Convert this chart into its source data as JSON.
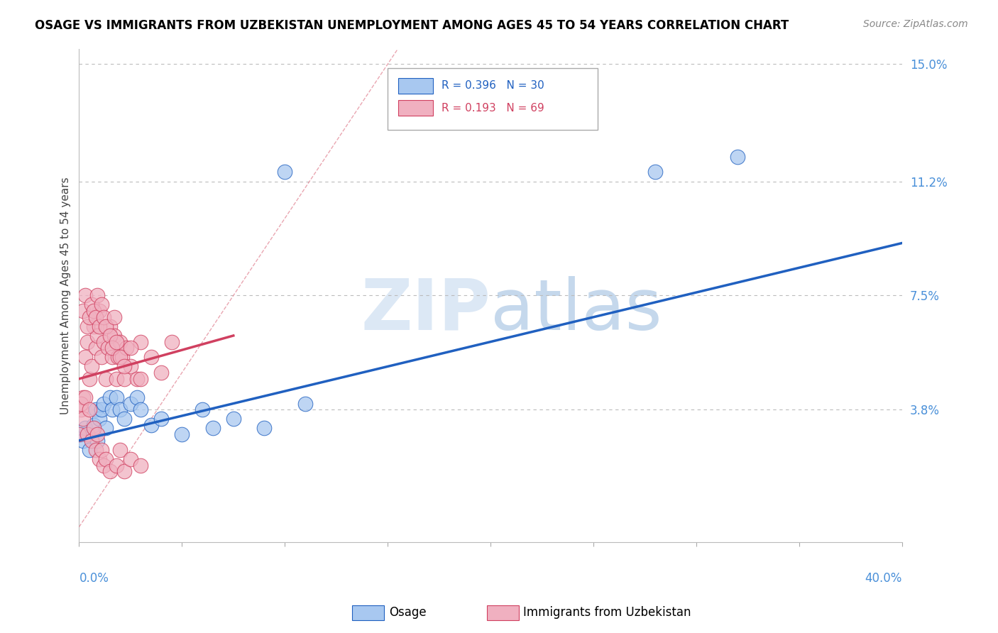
{
  "title": "OSAGE VS IMMIGRANTS FROM UZBEKISTAN UNEMPLOYMENT AMONG AGES 45 TO 54 YEARS CORRELATION CHART",
  "source": "Source: ZipAtlas.com",
  "ylabel": "Unemployment Among Ages 45 to 54 years",
  "xrange": [
    0.0,
    0.4
  ],
  "yrange": [
    -0.005,
    0.155
  ],
  "color_blue": "#a8c8f0",
  "color_pink": "#f0b0c0",
  "trend_blue": "#2060c0",
  "trend_pink": "#d04060",
  "ref_line_color": "#ddaaaa",
  "watermark_zip": "#c8d8e8",
  "watermark_atlas": "#b0c8e0",
  "osage_x": [
    0.001,
    0.002,
    0.003,
    0.005,
    0.007,
    0.008,
    0.009,
    0.01,
    0.011,
    0.012,
    0.013,
    0.015,
    0.016,
    0.018,
    0.02,
    0.022,
    0.025,
    0.028,
    0.03,
    0.035,
    0.04,
    0.05,
    0.06,
    0.065,
    0.075,
    0.09,
    0.1,
    0.11,
    0.28,
    0.32
  ],
  "osage_y": [
    0.03,
    0.028,
    0.032,
    0.025,
    0.033,
    0.038,
    0.028,
    0.035,
    0.038,
    0.04,
    0.032,
    0.042,
    0.038,
    0.042,
    0.038,
    0.035,
    0.04,
    0.042,
    0.038,
    0.033,
    0.035,
    0.03,
    0.038,
    0.032,
    0.035,
    0.032,
    0.115,
    0.04,
    0.115,
    0.12
  ],
  "uzbek_x": [
    0.0,
    0.001,
    0.002,
    0.003,
    0.004,
    0.005,
    0.006,
    0.007,
    0.008,
    0.009,
    0.01,
    0.011,
    0.012,
    0.013,
    0.014,
    0.015,
    0.016,
    0.017,
    0.018,
    0.019,
    0.02,
    0.021,
    0.022,
    0.023,
    0.025,
    0.028,
    0.03,
    0.035,
    0.04,
    0.045,
    0.002,
    0.003,
    0.004,
    0.005,
    0.006,
    0.007,
    0.008,
    0.009,
    0.01,
    0.011,
    0.012,
    0.013,
    0.015,
    0.016,
    0.017,
    0.018,
    0.02,
    0.022,
    0.025,
    0.03,
    0.001,
    0.002,
    0.003,
    0.004,
    0.005,
    0.006,
    0.007,
    0.008,
    0.009,
    0.01,
    0.011,
    0.012,
    0.013,
    0.015,
    0.018,
    0.02,
    0.022,
    0.025,
    0.03
  ],
  "uzbek_y": [
    0.03,
    0.038,
    0.042,
    0.055,
    0.06,
    0.048,
    0.052,
    0.065,
    0.058,
    0.062,
    0.07,
    0.055,
    0.06,
    0.048,
    0.058,
    0.065,
    0.055,
    0.062,
    0.048,
    0.055,
    0.06,
    0.055,
    0.048,
    0.058,
    0.052,
    0.048,
    0.06,
    0.055,
    0.05,
    0.06,
    0.07,
    0.075,
    0.065,
    0.068,
    0.072,
    0.07,
    0.068,
    0.075,
    0.065,
    0.072,
    0.068,
    0.065,
    0.062,
    0.058,
    0.068,
    0.06,
    0.055,
    0.052,
    0.058,
    0.048,
    0.04,
    0.035,
    0.042,
    0.03,
    0.038,
    0.028,
    0.032,
    0.025,
    0.03,
    0.022,
    0.025,
    0.02,
    0.022,
    0.018,
    0.02,
    0.025,
    0.018,
    0.022,
    0.02
  ],
  "R_blue": 0.396,
  "N_blue": 30,
  "R_pink": 0.193,
  "N_pink": 69,
  "blue_trend_x0": 0.0,
  "blue_trend_y0": 0.028,
  "blue_trend_x1": 0.4,
  "blue_trend_y1": 0.092,
  "pink_trend_x0": 0.0,
  "pink_trend_y0": 0.048,
  "pink_trend_x1": 0.075,
  "pink_trend_y1": 0.062
}
